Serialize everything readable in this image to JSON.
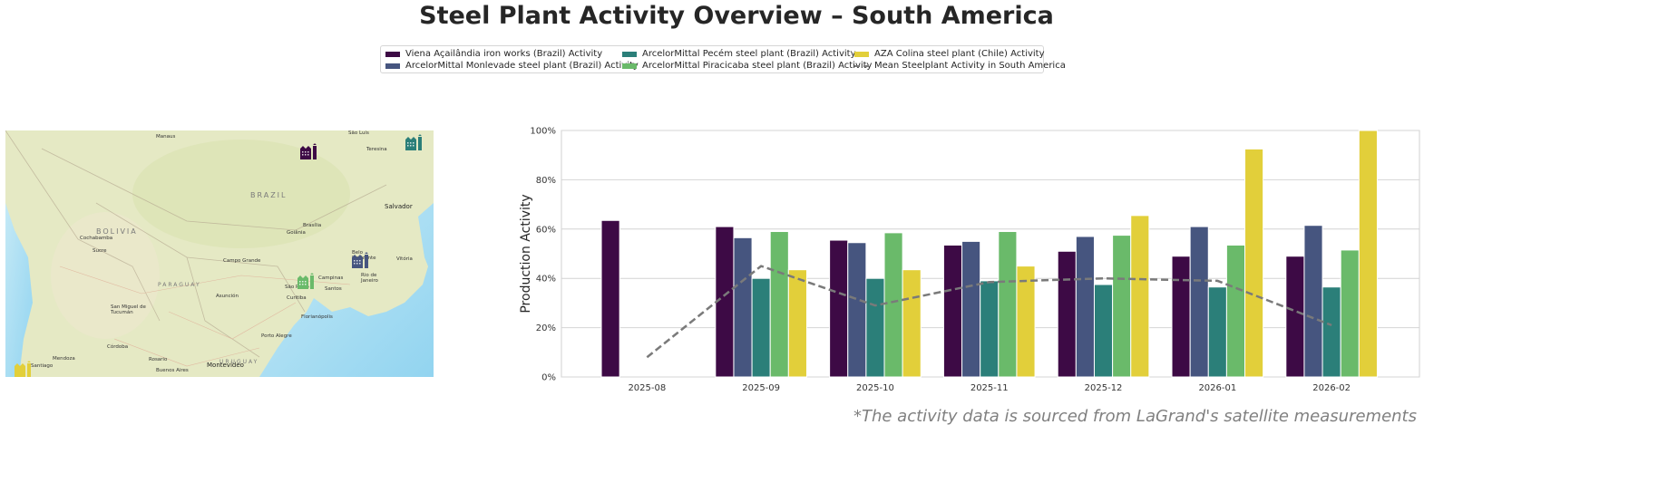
{
  "title": "Steel Plant Activity Overview – South America",
  "footer": "*The activity data is sourced from LaGrand's satellite measurements",
  "legend": [
    {
      "label": "Viena Açailândia iron works (Brazil) Activity",
      "color": "#3d0a45"
    },
    {
      "label": "ArcelorMittal Monlevade steel plant (Brazil) Activity",
      "color": "#46557f"
    },
    {
      "label": "ArcelorMittal Pecém steel plant (Brazil) Activity",
      "color": "#2b7f79"
    },
    {
      "label": "ArcelorMittal Piracicaba steel plant (Brazil) Activity",
      "color": "#6aba6a"
    },
    {
      "label": "AZA Colina steel plant (Chile) Activity",
      "color": "#e2cf3a"
    },
    {
      "label": "Mean Steelplant Activity in South America",
      "color": "#7a7a7a"
    }
  ],
  "map": {
    "countries": [
      "BRAZIL",
      "BOLIVIA",
      "PARAGUAY",
      "URUGUAY"
    ],
    "cities": [
      "Manaus",
      "São Luís",
      "Teresina",
      "Salvador",
      "Cochabamba",
      "Sucre",
      "Brasília",
      "Goiânia",
      "Campo Grande",
      "Belo Horizonte",
      "Vitória",
      "Rio de Janeiro",
      "Campinas",
      "São Paulo",
      "Santos",
      "Asunción",
      "Curitiba",
      "San Miguel de Tucumán",
      "Florianópolis",
      "Porto Alegre",
      "Córdoba",
      "Rosario",
      "Buenos Aires",
      "Montevideo",
      "Mendoza",
      "Santiago"
    ],
    "markers": [
      {
        "plant": "Viena Açailândia iron works (Brazil)",
        "icon": "factory-icon",
        "color": "#3d0a45"
      },
      {
        "plant": "ArcelorMittal Pecém steel plant (Brazil)",
        "icon": "factory-icon",
        "color": "#2b7f79"
      },
      {
        "plant": "ArcelorMittal Monlevade steel plant (Brazil)",
        "icon": "factory-icon",
        "color": "#46557f"
      },
      {
        "plant": "ArcelorMittal Piracicaba steel plant (Brazil)",
        "icon": "factory-icon",
        "color": "#6aba6a"
      },
      {
        "plant": "AZA Colina steel plant (Chile)",
        "icon": "factory-icon",
        "color": "#e2cf3a"
      }
    ]
  },
  "chart_data": {
    "type": "bar",
    "title": "",
    "xlabel": "",
    "ylabel": "Production Activity",
    "ylim": [
      0,
      100
    ],
    "yticks": [
      "0%",
      "20%",
      "40%",
      "60%",
      "80%",
      "100%"
    ],
    "grid": "horizontal",
    "legend_placement": "top-center",
    "categories": [
      "2025-08",
      "2025-09",
      "2025-10",
      "2025-11",
      "2025-12",
      "2026-01",
      "2026-02"
    ],
    "series": [
      {
        "name": "Viena Açailândia iron works (Brazil) Activity",
        "color": "#3d0a45",
        "values": [
          63.5,
          61,
          55.5,
          53.5,
          51,
          49,
          49
        ]
      },
      {
        "name": "ArcelorMittal Monlevade steel plant (Brazil) Activity",
        "color": "#46557f",
        "values": [
          null,
          56.5,
          54.5,
          55,
          57,
          61,
          61.5
        ]
      },
      {
        "name": "ArcelorMittal Pecém steel plant (Brazil) Activity",
        "color": "#2b7f79",
        "values": [
          null,
          40,
          40,
          39,
          37.5,
          36.5,
          36.5
        ]
      },
      {
        "name": "ArcelorMittal Piracicaba steel plant (Brazil) Activity",
        "color": "#6aba6a",
        "values": [
          null,
          59,
          58.5,
          59,
          57.5,
          53.5,
          51.5
        ]
      },
      {
        "name": "AZA Colina steel plant (Chile) Activity",
        "color": "#e2cf3a",
        "values": [
          null,
          43.5,
          43.5,
          45,
          65.5,
          92.5,
          100
        ]
      }
    ],
    "line": {
      "name": "Mean Steelplant Activity in South America",
      "color": "#7a7a7a",
      "style": "dashed",
      "values": [
        8,
        45,
        29,
        38.5,
        40,
        39,
        21
      ]
    }
  }
}
